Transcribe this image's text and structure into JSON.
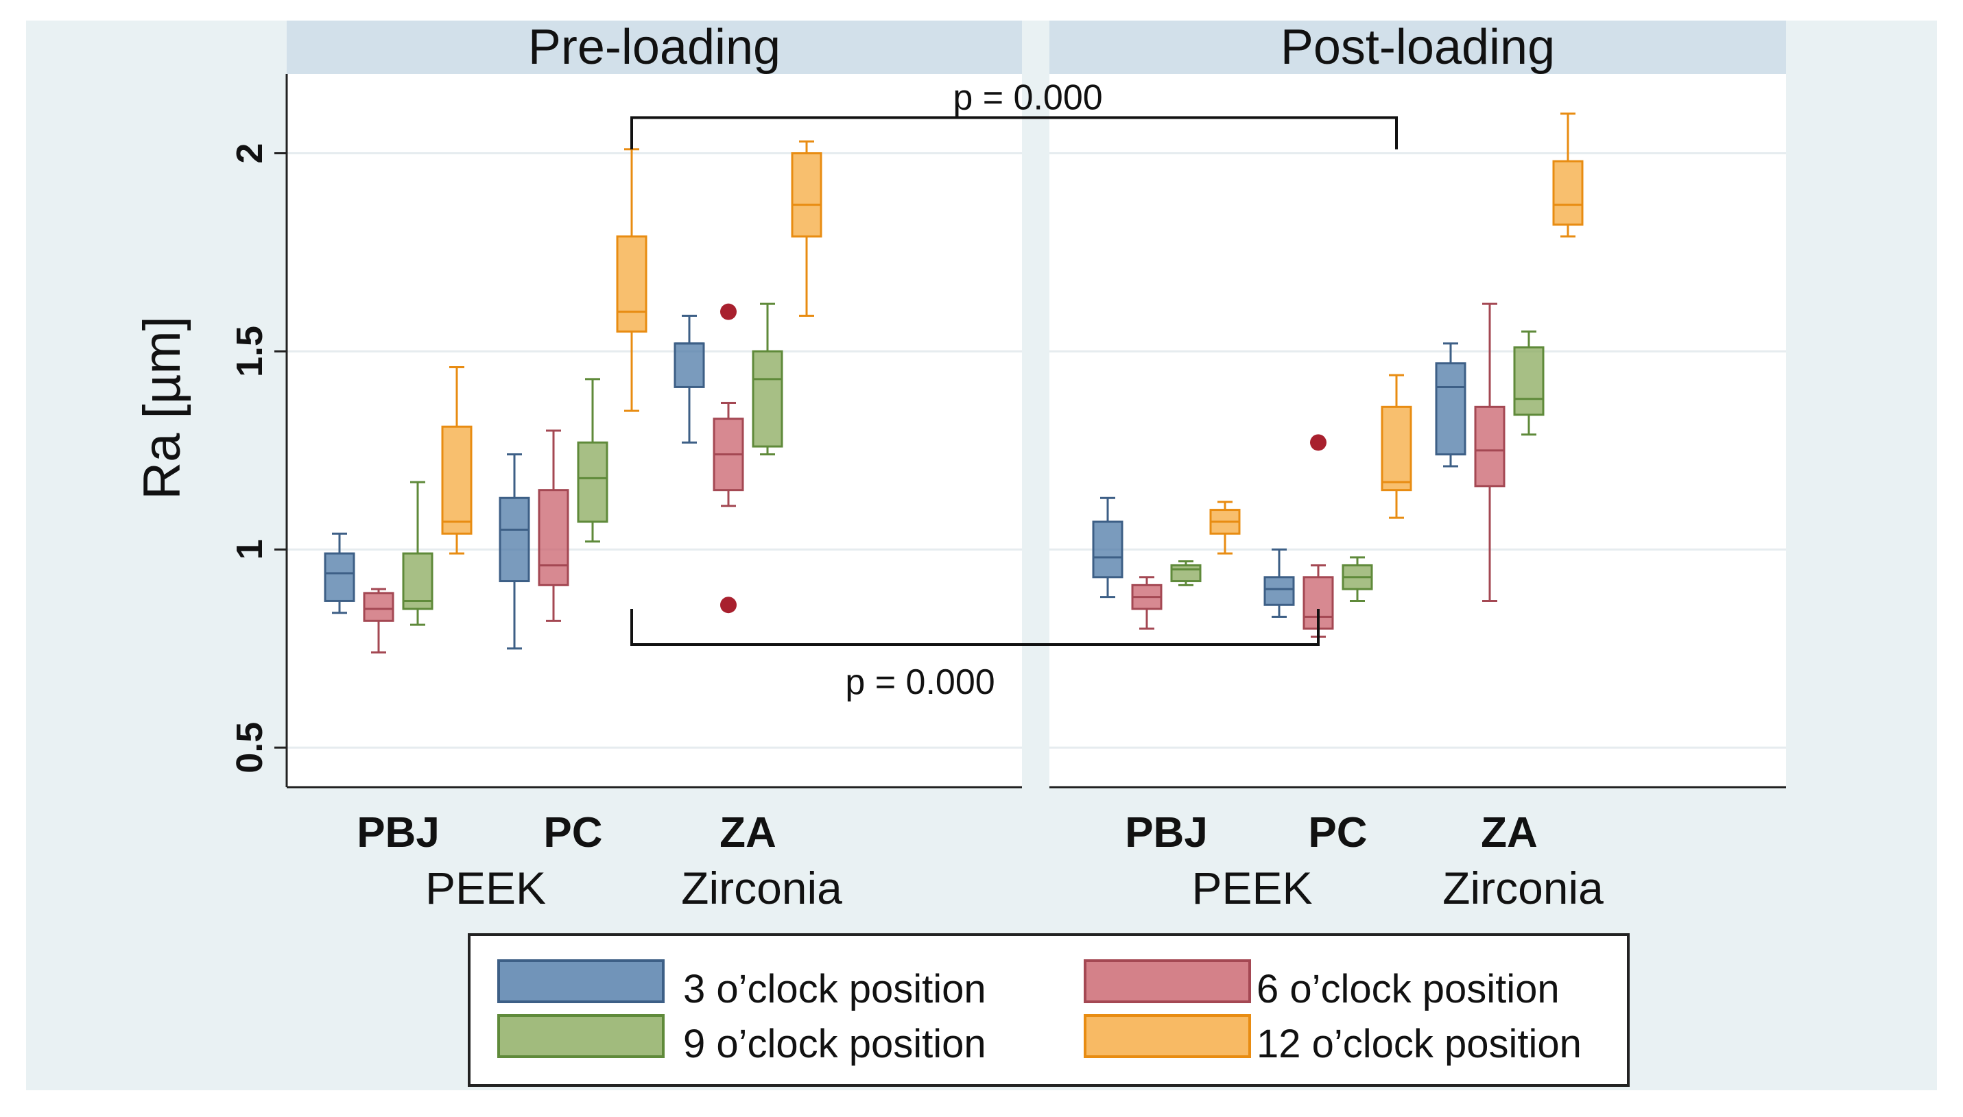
{
  "chart_data": {
    "type": "box",
    "ylabel": "Ra [µm]",
    "ylim": [
      0.4,
      2.2
    ],
    "yticks": [
      0.5,
      1,
      1.5,
      2
    ],
    "ytick_labels": [
      "0.5",
      "1",
      "1.5",
      "2"
    ],
    "grid": true,
    "legend_position": "bottom",
    "panels": [
      {
        "title": "Pre-loading",
        "groups": [
          {
            "label": "PBJ",
            "boxes": [
              {
                "series": "3 o’clock position",
                "whisker_low": 0.84,
                "q1": 0.87,
                "median": 0.94,
                "q3": 0.99,
                "whisker_high": 1.04,
                "outliers": []
              },
              {
                "series": "6 o’clock position",
                "whisker_low": 0.74,
                "q1": 0.82,
                "median": 0.85,
                "q3": 0.89,
                "whisker_high": 0.9,
                "outliers": []
              },
              {
                "series": "9 o’clock position",
                "whisker_low": 0.81,
                "q1": 0.85,
                "median": 0.87,
                "q3": 0.99,
                "whisker_high": 1.17,
                "outliers": []
              },
              {
                "series": "12 o’clock position",
                "whisker_low": 0.99,
                "q1": 1.04,
                "median": 1.07,
                "q3": 1.31,
                "whisker_high": 1.46,
                "outliers": []
              }
            ]
          },
          {
            "label": "PC",
            "boxes": [
              {
                "series": "3 o’clock position",
                "whisker_low": 0.75,
                "q1": 0.92,
                "median": 1.05,
                "q3": 1.13,
                "whisker_high": 1.24,
                "outliers": []
              },
              {
                "series": "6 o’clock position",
                "whisker_low": 0.82,
                "q1": 0.91,
                "median": 0.96,
                "q3": 1.15,
                "whisker_high": 1.3,
                "outliers": []
              },
              {
                "series": "9 o’clock position",
                "whisker_low": 1.02,
                "q1": 1.07,
                "median": 1.18,
                "q3": 1.27,
                "whisker_high": 1.43,
                "outliers": []
              },
              {
                "series": "12 o’clock position",
                "whisker_low": 1.35,
                "q1": 1.55,
                "median": 1.6,
                "q3": 1.79,
                "whisker_high": 2.01,
                "outliers": []
              }
            ]
          },
          {
            "label": "ZA",
            "boxes": [
              {
                "series": "3 o’clock position",
                "whisker_low": 1.27,
                "q1": 1.41,
                "median": 1.52,
                "q3": 1.52,
                "whisker_high": 1.59,
                "outliers": []
              },
              {
                "series": "6 o’clock position",
                "whisker_low": 1.11,
                "q1": 1.15,
                "median": 1.24,
                "q3": 1.33,
                "whisker_high": 1.37,
                "outliers": [
                  1.6,
                  0.86
                ]
              },
              {
                "series": "9 o’clock position",
                "whisker_low": 1.24,
                "q1": 1.26,
                "median": 1.43,
                "q3": 1.5,
                "whisker_high": 1.62,
                "outliers": []
              },
              {
                "series": "12 o’clock position",
                "whisker_low": 1.59,
                "q1": 1.79,
                "median": 1.87,
                "q3": 2.0,
                "whisker_high": 2.03,
                "outliers": []
              }
            ]
          }
        ]
      },
      {
        "title": "Post-loading",
        "groups": [
          {
            "label": "PBJ",
            "boxes": [
              {
                "series": "3 o’clock position",
                "whisker_low": 0.88,
                "q1": 0.93,
                "median": 0.98,
                "q3": 1.07,
                "whisker_high": 1.13,
                "outliers": []
              },
              {
                "series": "6 o’clock position",
                "whisker_low": 0.8,
                "q1": 0.85,
                "median": 0.88,
                "q3": 0.91,
                "whisker_high": 0.93,
                "outliers": []
              },
              {
                "series": "9 o’clock position",
                "whisker_low": 0.91,
                "q1": 0.92,
                "median": 0.95,
                "q3": 0.96,
                "whisker_high": 0.97,
                "outliers": []
              },
              {
                "series": "12 o’clock position",
                "whisker_low": 0.99,
                "q1": 1.04,
                "median": 1.07,
                "q3": 1.1,
                "whisker_high": 1.12,
                "outliers": []
              }
            ]
          },
          {
            "label": "PC",
            "boxes": [
              {
                "series": "3 o’clock position",
                "whisker_low": 0.83,
                "q1": 0.86,
                "median": 0.9,
                "q3": 0.93,
                "whisker_high": 1.0,
                "outliers": []
              },
              {
                "series": "6 o’clock position",
                "whisker_low": 0.78,
                "q1": 0.8,
                "median": 0.83,
                "q3": 0.93,
                "whisker_high": 0.96,
                "outliers": [
                  1.27
                ]
              },
              {
                "series": "9 o’clock position",
                "whisker_low": 0.87,
                "q1": 0.9,
                "median": 0.93,
                "q3": 0.96,
                "whisker_high": 0.98,
                "outliers": []
              },
              {
                "series": "12 o’clock position",
                "whisker_low": 1.08,
                "q1": 1.15,
                "median": 1.17,
                "q3": 1.36,
                "whisker_high": 1.44,
                "outliers": []
              }
            ]
          },
          {
            "label": "ZA",
            "boxes": [
              {
                "series": "3 o’clock position",
                "whisker_low": 1.21,
                "q1": 1.24,
                "median": 1.41,
                "q3": 1.47,
                "whisker_high": 1.52,
                "outliers": []
              },
              {
                "series": "6 o’clock position",
                "whisker_low": 0.87,
                "q1": 1.16,
                "median": 1.25,
                "q3": 1.36,
                "whisker_high": 1.62,
                "outliers": []
              },
              {
                "series": "9 o’clock position",
                "whisker_low": 1.29,
                "q1": 1.34,
                "median": 1.38,
                "q3": 1.51,
                "whisker_high": 1.55,
                "outliers": []
              },
              {
                "series": "12 o’clock position",
                "whisker_low": 1.79,
                "q1": 1.82,
                "median": 1.87,
                "q3": 1.98,
                "whisker_high": 2.1,
                "outliers": []
              }
            ]
          }
        ]
      }
    ],
    "material_labels": [
      "PEEK",
      "Zirconia"
    ],
    "series_styles": [
      {
        "name": "3 o’clock position",
        "fill": "#4e79a7",
        "stroke": "#3d5f86",
        "outlier": "#4e79a7"
      },
      {
        "name": "6 o’clock position",
        "fill": "#c9616c",
        "stroke": "#a44853",
        "outlier": "#a8202e"
      },
      {
        "name": "9 o’clock position",
        "fill": "#8aaa5c",
        "stroke": "#5f8a3a",
        "outlier": "#8aaa5c"
      },
      {
        "name": "12 o’clock position",
        "fill": "#f6a93d",
        "stroke": "#e88c12",
        "outlier": "#f6a93d"
      }
    ],
    "legend": {
      "entries": [
        "3 o’clock position",
        "6 o’clock position",
        "9 o’clock position",
        "12 o’clock position"
      ]
    },
    "annotations": [
      {
        "text": "p = 0.000",
        "from": {
          "panel": 0,
          "group": 1,
          "box": 3
        },
        "to": {
          "panel": 1,
          "group": 1,
          "box": 3
        },
        "y": 2.09,
        "tick_to_y": 2.01,
        "side": "top"
      },
      {
        "text": "p = 0.000",
        "from": {
          "panel": 0,
          "group": 1,
          "box": 3
        },
        "to": {
          "panel": 1,
          "group": 1,
          "box": 1
        },
        "y": 0.76,
        "tick_to_y": 0.85,
        "side": "bottom"
      }
    ]
  },
  "colors": {
    "outer_background": "#e9f1f3",
    "plot_background": "#ffffff",
    "panel_header": "#d2e0ea",
    "gridline": "#e6ecef",
    "axis": "#222222"
  }
}
